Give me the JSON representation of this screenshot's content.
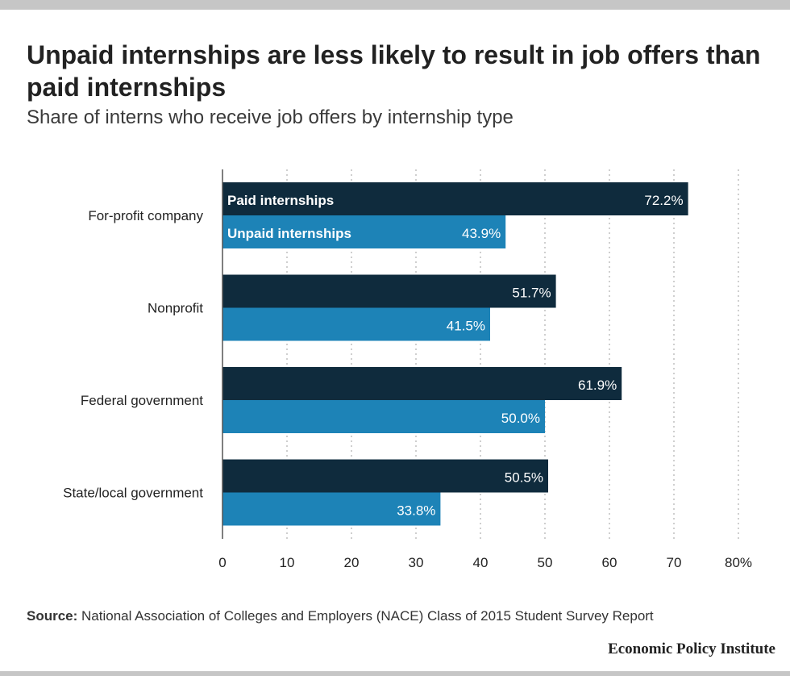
{
  "title": "Unpaid internships are less likely to result in job offers than paid internships",
  "subtitle": "Share of interns who receive job offers by internship type",
  "source_label": "Source:",
  "source_text": " National Association of Colleges and Employers (NACE) Class of 2015 Student Survey Report",
  "brand": "Economic Policy Institute",
  "colors": {
    "paid": "#0f2b3d",
    "unpaid": "#1d83b7",
    "grid": "#cfcfcf",
    "axis": "#555555",
    "text": "#222222"
  },
  "chart_data": {
    "type": "bar",
    "orientation": "horizontal",
    "categories": [
      "For-profit company",
      "Nonprofit",
      "Federal government",
      "State/local government"
    ],
    "series": [
      {
        "name": "Paid internships",
        "values": [
          72.2,
          51.7,
          61.9,
          50.5
        ],
        "labels": [
          "72.2%",
          "51.7%",
          "61.9%",
          "50.5%"
        ],
        "color": "#0f2b3d"
      },
      {
        "name": "Unpaid internships",
        "values": [
          43.9,
          41.5,
          50.0,
          33.8
        ],
        "labels": [
          "43.9%",
          "41.5%",
          "50.0%",
          "33.8%"
        ],
        "color": "#1d83b7"
      }
    ],
    "xlim": [
      0,
      80
    ],
    "xticks": [
      "0",
      "10",
      "20",
      "30",
      "40",
      "50",
      "60",
      "70",
      "80%"
    ],
    "grid": true,
    "legend": "inline-in-first-bars"
  }
}
